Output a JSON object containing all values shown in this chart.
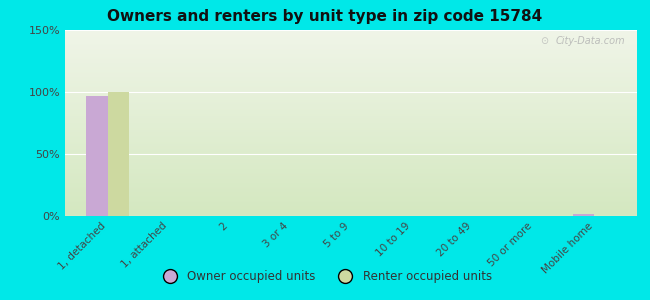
{
  "title": "Owners and renters by unit type in zip code 15784",
  "categories": [
    "1, detached",
    "1, attached",
    "2",
    "3 or 4",
    "5 to 9",
    "10 to 19",
    "20 to 49",
    "50 or more",
    "Mobile home"
  ],
  "owner_values": [
    97,
    0,
    0,
    0,
    0,
    0,
    0,
    0,
    2
  ],
  "renter_values": [
    100,
    0,
    0,
    0,
    0,
    0,
    0,
    0,
    0
  ],
  "owner_color": "#c9a8d4",
  "renter_color": "#cdd9a0",
  "background_top": "#d8ead8",
  "background_bottom": "#e8f2d0",
  "background_fig": "#00e8e8",
  "ylim": [
    0,
    150
  ],
  "yticks": [
    0,
    50,
    100,
    150
  ],
  "ytick_labels": [
    "0%",
    "50%",
    "100%",
    "150%"
  ],
  "bar_width": 0.35,
  "legend_owner": "Owner occupied units",
  "legend_renter": "Renter occupied units",
  "watermark": "City-Data.com"
}
